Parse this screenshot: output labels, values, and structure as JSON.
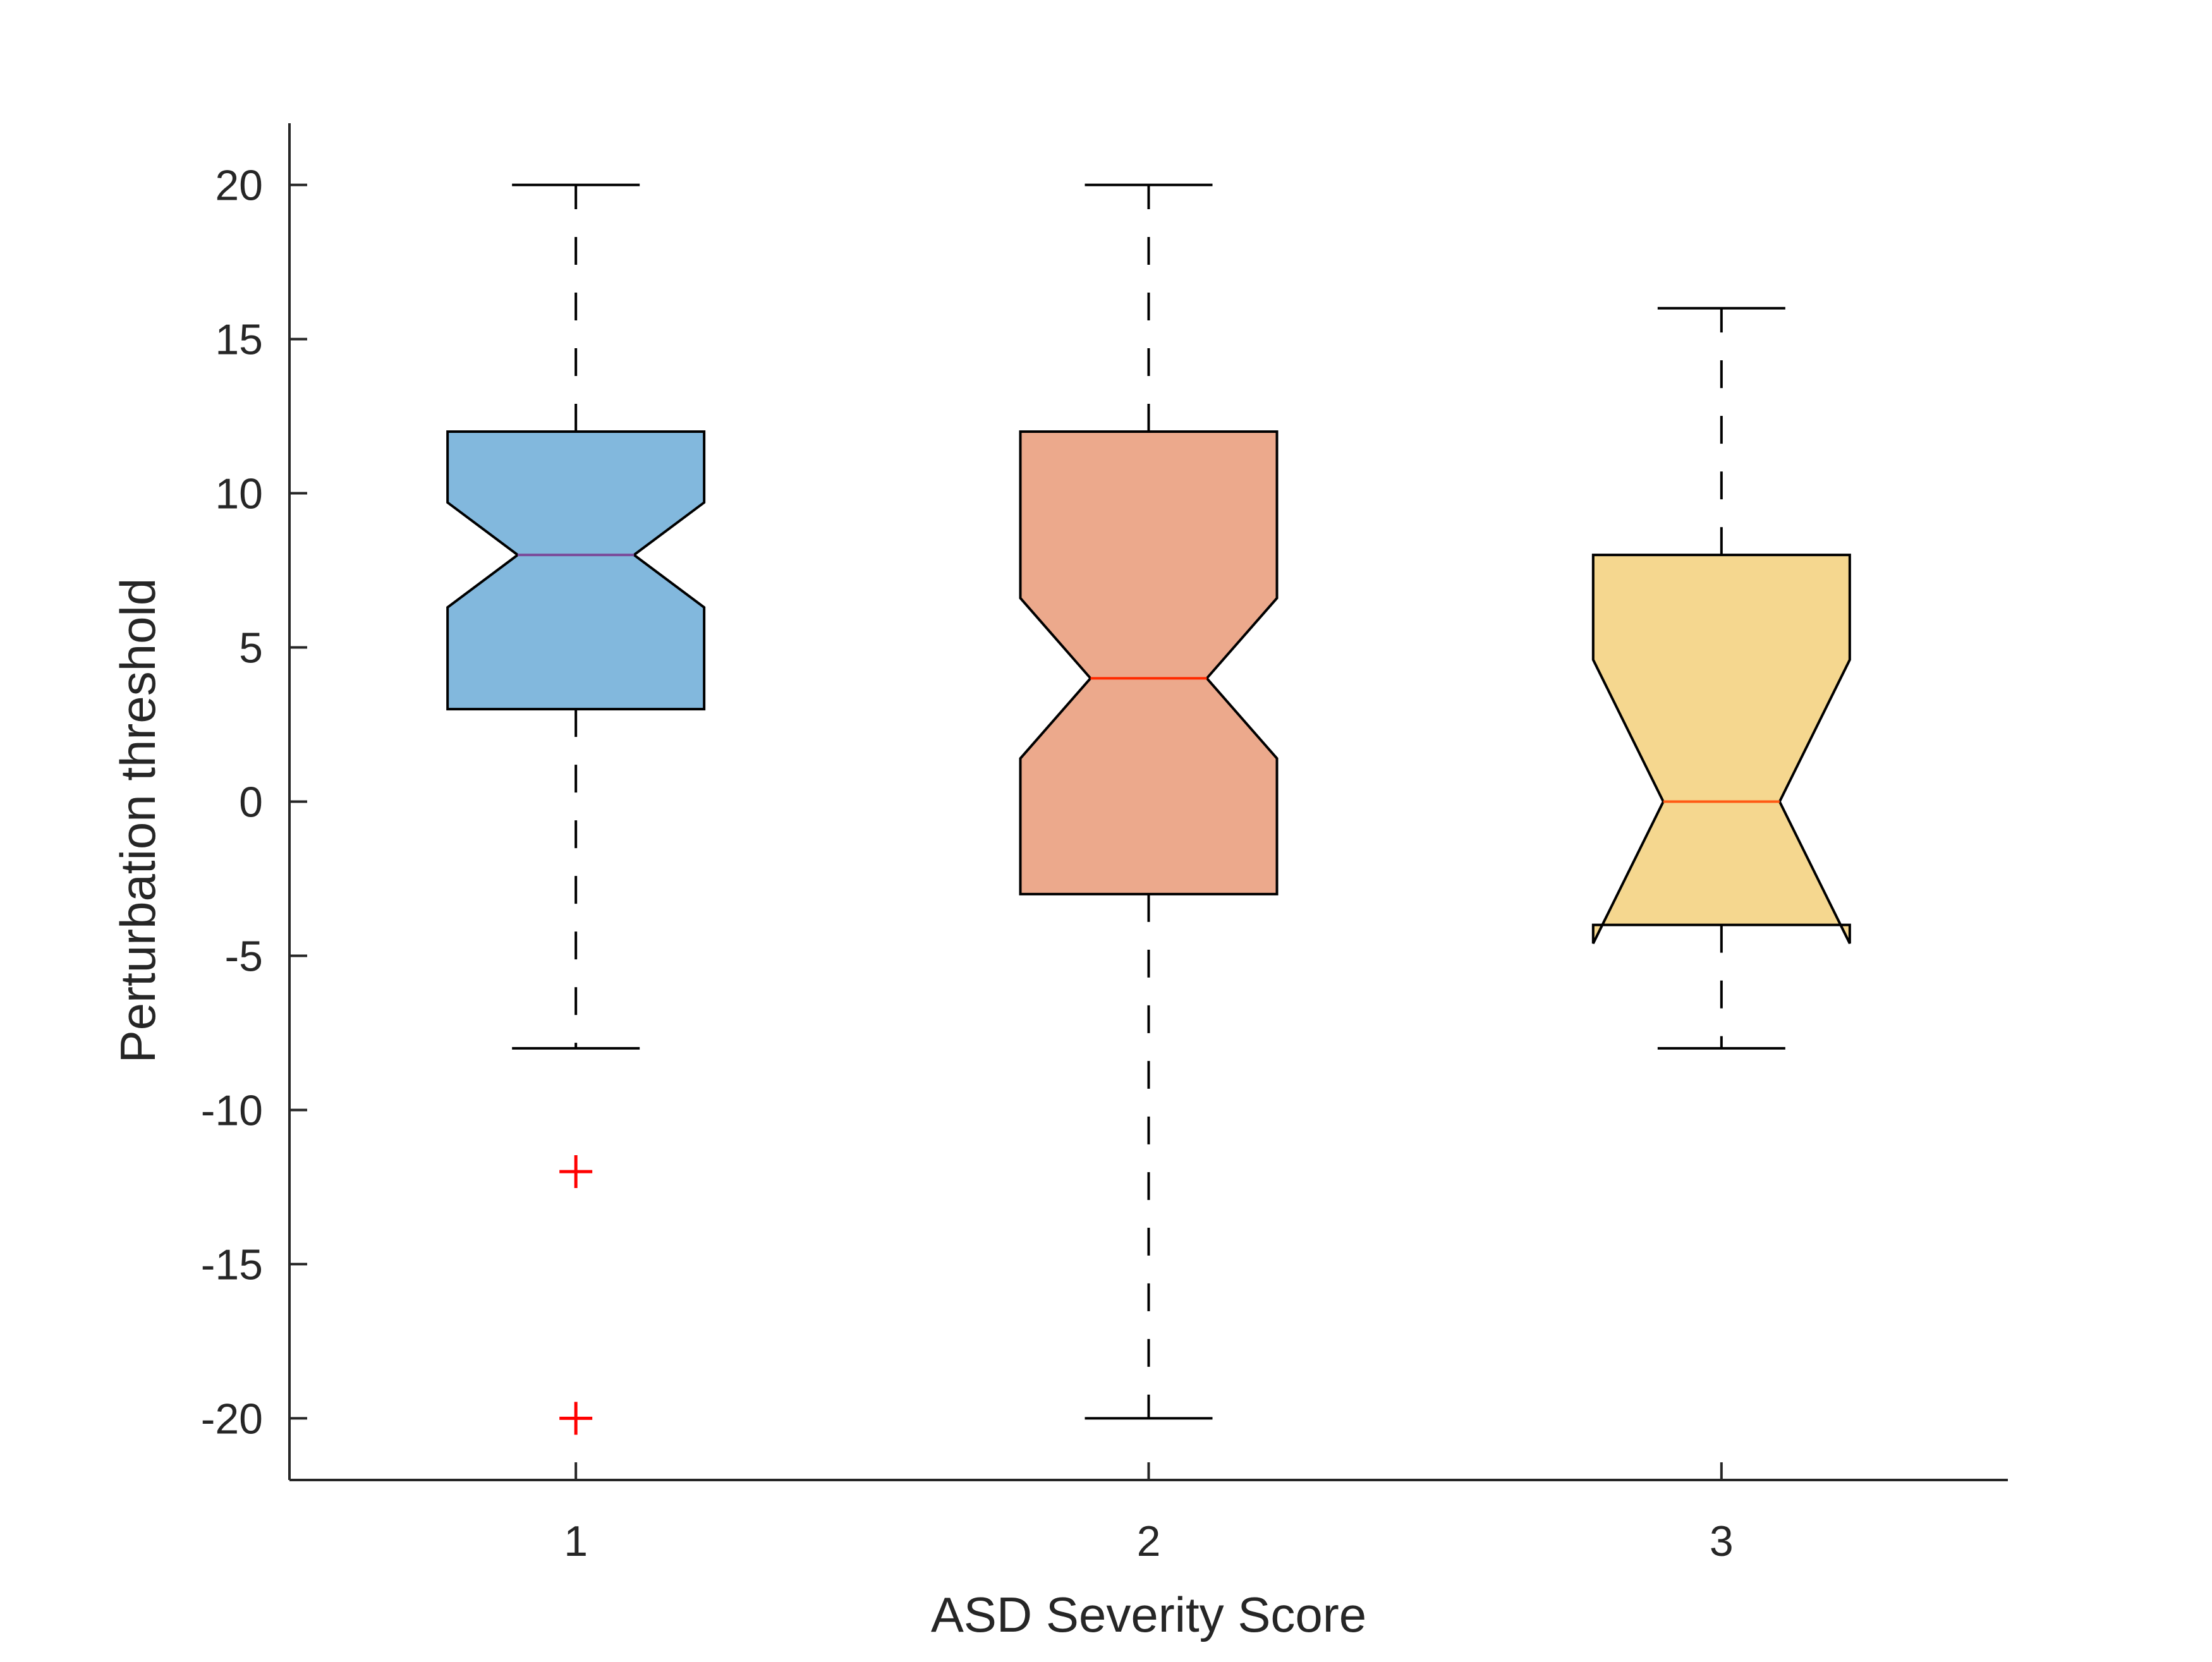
{
  "chart_data": {
    "type": "boxplot",
    "notched": true,
    "title": "",
    "xlabel": "ASD Severity Score",
    "ylabel": "Perturbation threshold",
    "ylim": [
      -22,
      22
    ],
    "xlim": [
      0.5,
      3.5
    ],
    "y_ticks": [
      -20,
      -15,
      -10,
      -5,
      0,
      5,
      10,
      15,
      20
    ],
    "grid": false,
    "categories": [
      "1",
      "2",
      "3"
    ],
    "boxes": [
      {
        "category": "1",
        "min": -8,
        "q1": 3,
        "median": 8,
        "q3": 12,
        "max": 20,
        "notch_low": 6.3,
        "notch_high": 9.7,
        "outliers": [
          -12,
          -20
        ],
        "fill": "#82B8DD",
        "median_color": "#7B4A9A"
      },
      {
        "category": "2",
        "min": -20,
        "q1": -3,
        "median": 4,
        "q3": 12,
        "max": 20,
        "notch_low": 1.4,
        "notch_high": 6.6,
        "outliers": [],
        "fill": "#ECA98C",
        "median_color": "#FF2A00"
      },
      {
        "category": "3",
        "min": -8,
        "q1": -4,
        "median": 0,
        "q3": 8,
        "max": 16,
        "notch_low": -4.6,
        "notch_high": 4.6,
        "outliers": [],
        "fill": "#F5D78F",
        "median_color": "#FF5A14"
      }
    ],
    "colors": {
      "axis": "#262626",
      "box_edge": "#000000",
      "whisker": "#000000",
      "outlier": "#FF0000"
    }
  }
}
